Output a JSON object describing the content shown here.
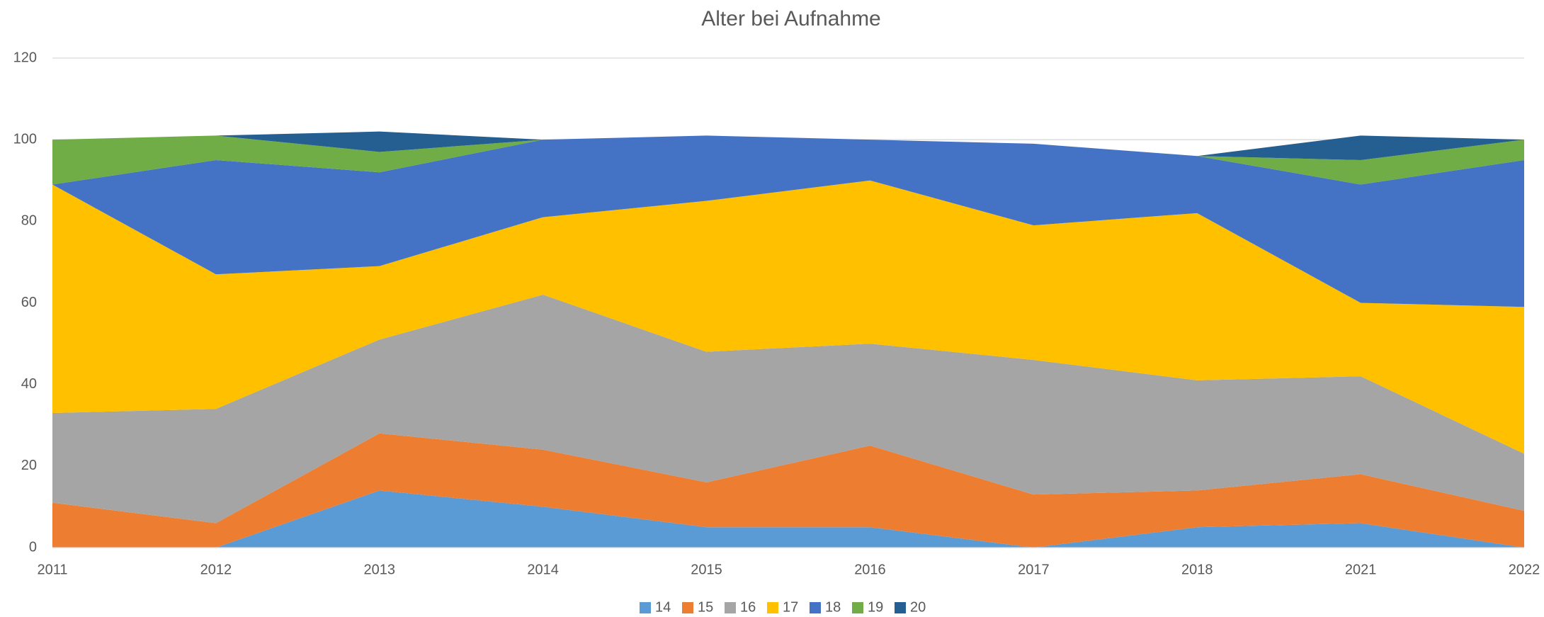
{
  "chart_data": {
    "type": "stacked_area",
    "title": "Alter bei Aufnahme",
    "categories": [
      "2011",
      "2012",
      "2013",
      "2014",
      "2015",
      "2016",
      "2017",
      "2018",
      "2021",
      "2022"
    ],
    "series": [
      {
        "name": "14",
        "color": "#5b9bd5",
        "values": [
          0,
          0,
          14,
          10,
          5,
          5,
          0,
          5,
          6,
          0
        ]
      },
      {
        "name": "15",
        "color": "#ed7d31",
        "values": [
          11,
          6,
          14,
          14,
          11,
          20,
          13,
          9,
          12,
          9
        ]
      },
      {
        "name": "16",
        "color": "#a5a5a5",
        "values": [
          22,
          28,
          23,
          38,
          32,
          25,
          33,
          27,
          24,
          14
        ]
      },
      {
        "name": "17",
        "color": "#ffc000",
        "values": [
          56,
          33,
          18,
          19,
          37,
          40,
          33,
          41,
          18,
          36
        ]
      },
      {
        "name": "18",
        "color": "#4472c4",
        "values": [
          0,
          28,
          23,
          19,
          16,
          10,
          20,
          14,
          29,
          36
        ]
      },
      {
        "name": "19",
        "color": "#70ad47",
        "values": [
          11,
          6,
          5,
          0,
          0,
          0,
          0,
          0,
          6,
          5
        ]
      },
      {
        "name": "20",
        "color": "#255e91",
        "values": [
          0,
          0,
          5,
          0,
          0,
          0,
          0,
          0,
          6,
          0
        ]
      }
    ],
    "ylim": [
      0,
      120
    ],
    "yticks": [
      0,
      20,
      40,
      60,
      80,
      100,
      120
    ],
    "grid": true,
    "legend": "bottom"
  }
}
